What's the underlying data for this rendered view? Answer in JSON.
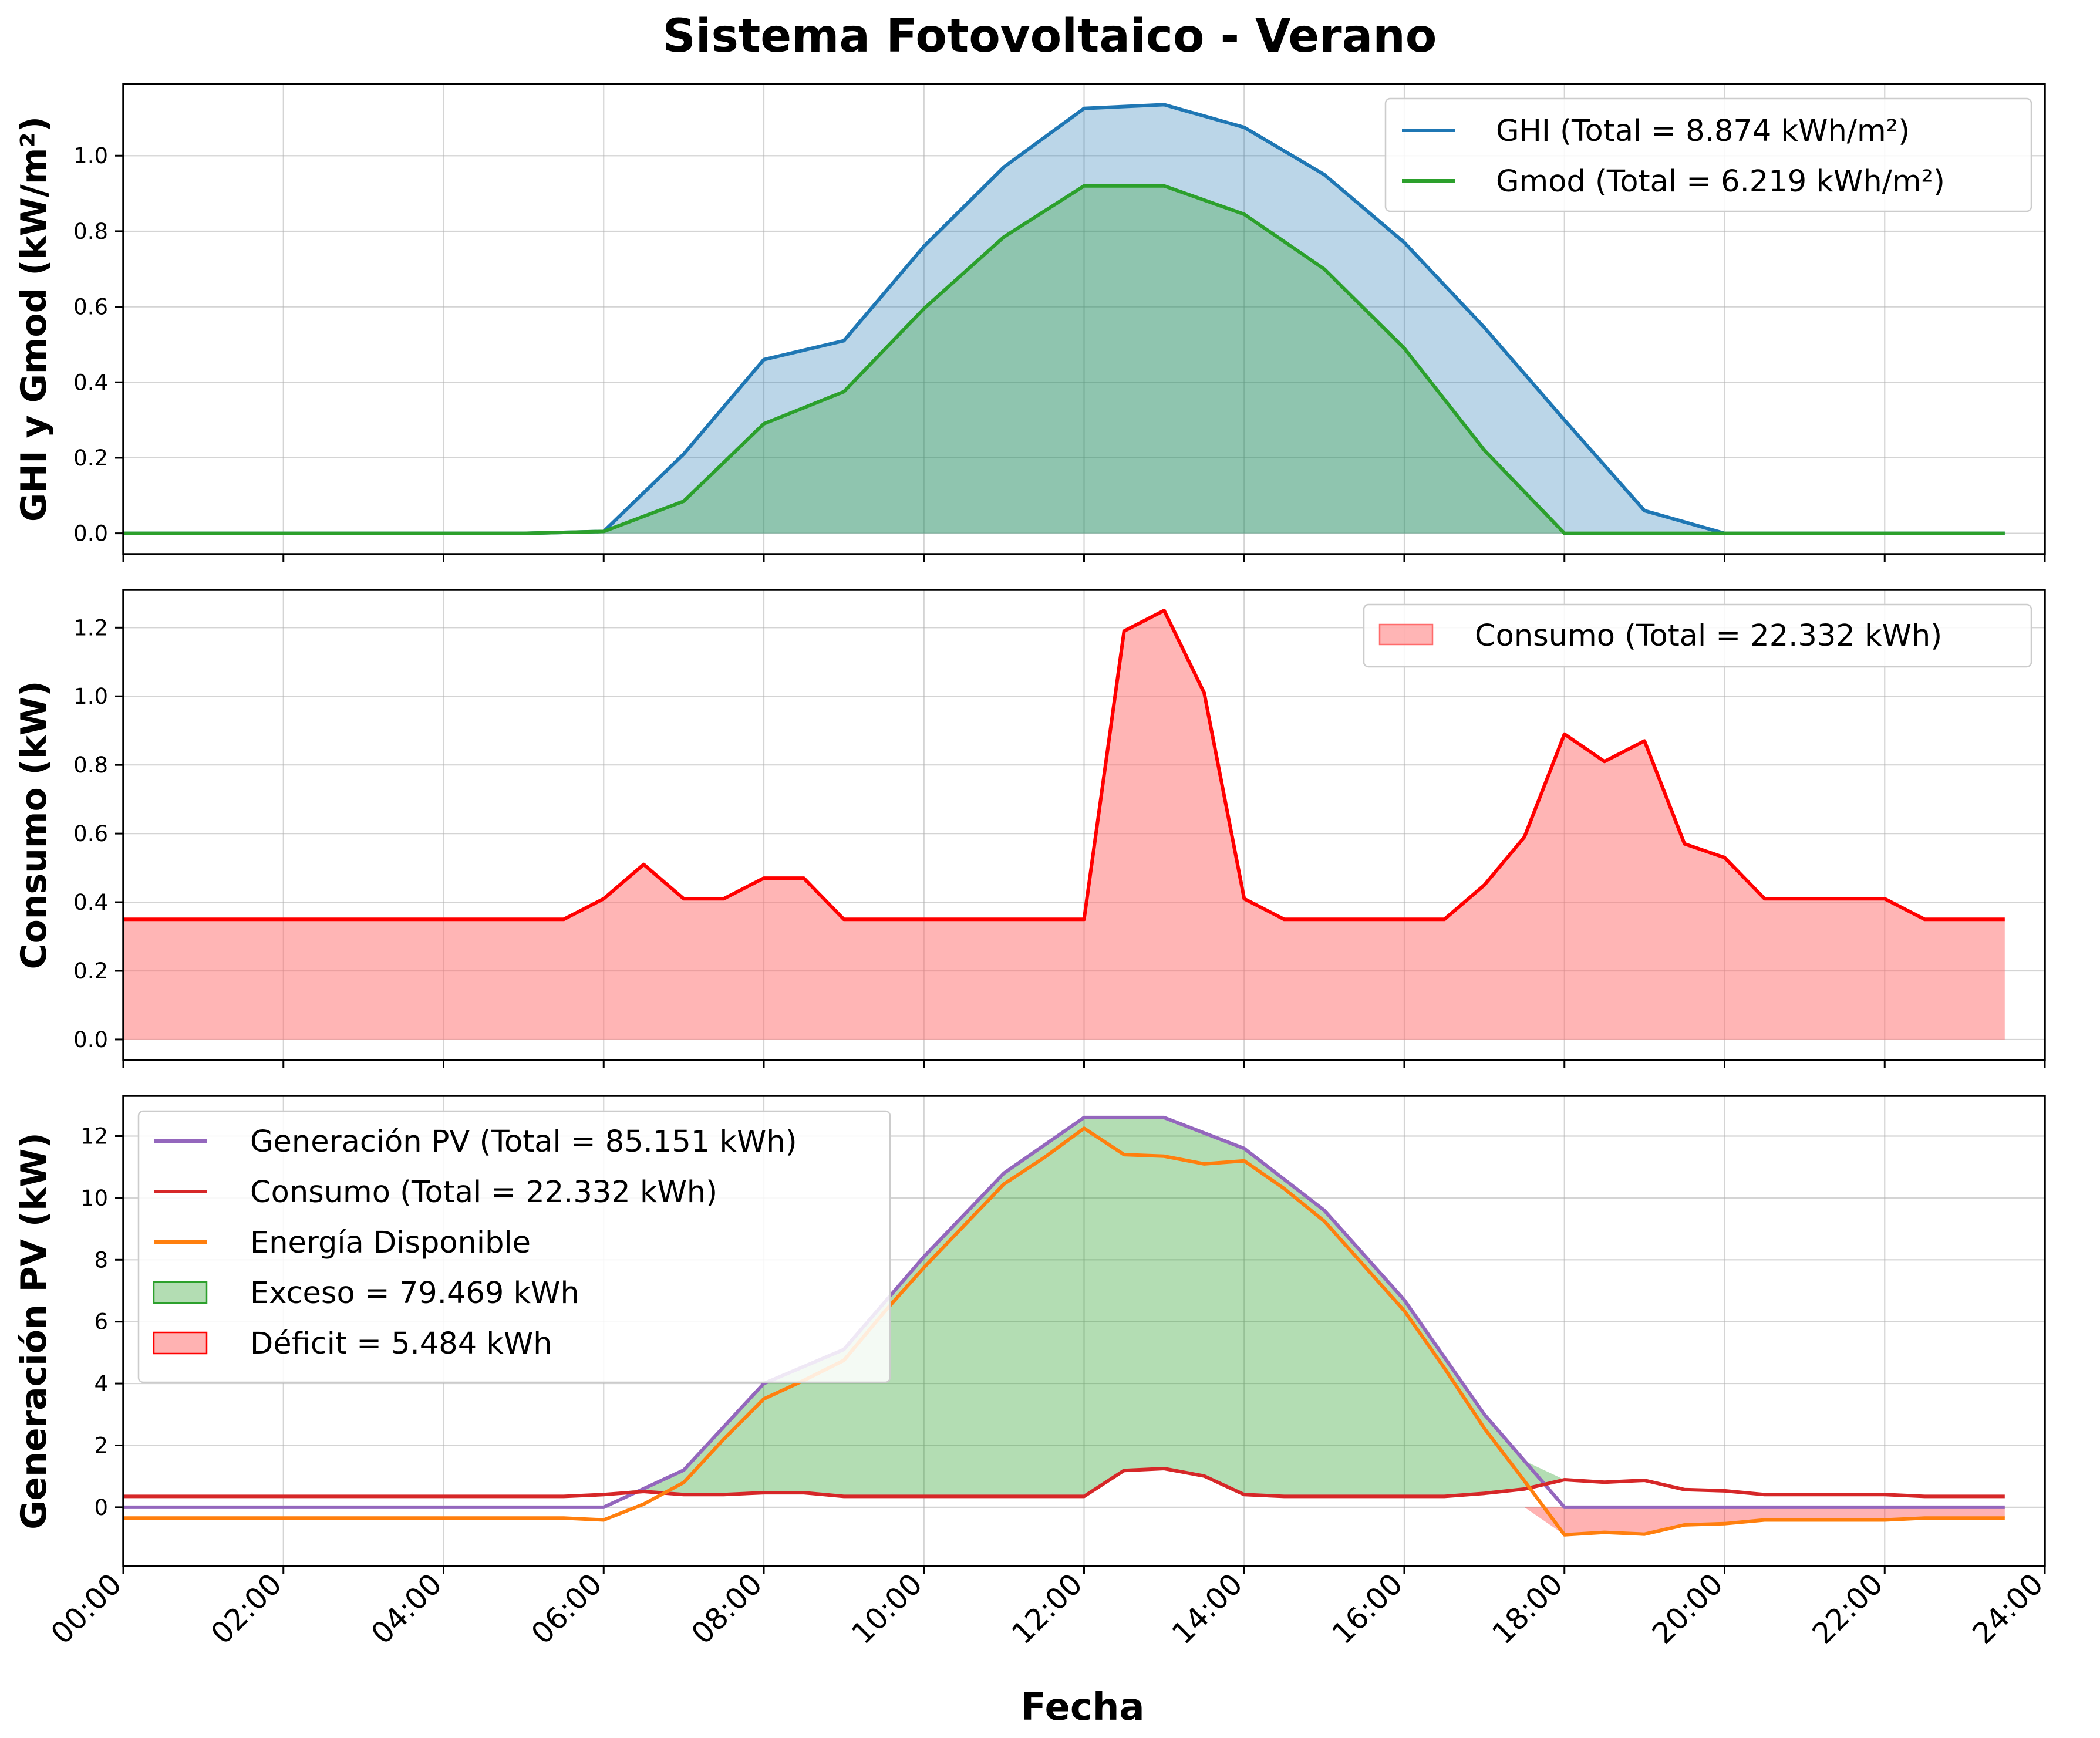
{
  "figure": {
    "title": "Sistema Fotovoltaico - Verano",
    "xlabel": "Fecha",
    "x_ticks": [
      "00:00",
      "02:00",
      "04:00",
      "06:00",
      "08:00",
      "10:00",
      "12:00",
      "14:00",
      "16:00",
      "18:00",
      "20:00",
      "22:00",
      "24:00"
    ]
  },
  "colors": {
    "ghi": "#1f77b4",
    "gmod": "#2ca02c",
    "consumo_area": "#ff6b6b",
    "consumo_line_top": "#ff0000",
    "pv": "#9467bd",
    "consumo_line": "#d62728",
    "disponible": "#ff7f0e",
    "exceso": "#2ca02c",
    "deficit": "#ff0000"
  },
  "chart_data": [
    {
      "type": "area",
      "ylabel": "GHI y Gmod (kW/m²)",
      "xlim": [
        0,
        24
      ],
      "ylim": [
        -0.055,
        1.19
      ],
      "yticks": [
        0.0,
        0.2,
        0.4,
        0.6,
        0.8,
        1.0
      ],
      "ytick_labels": [
        "0.0",
        "0.2",
        "0.4",
        "0.6",
        "0.8",
        "1.0"
      ],
      "grid": true,
      "legend_position": "upper right",
      "series": [
        {
          "name": "GHI (Total = 8.874 kWh/m²)",
          "x": [
            0,
            1,
            2,
            3,
            4,
            5,
            6,
            7,
            8,
            9,
            10,
            11,
            12,
            13,
            14,
            15,
            16,
            17,
            18,
            19,
            20,
            21,
            22,
            23.5
          ],
          "y": [
            0,
            0,
            0,
            0,
            0,
            0,
            0.005,
            0.21,
            0.46,
            0.51,
            0.76,
            0.97,
            1.125,
            1.135,
            1.075,
            0.95,
            0.77,
            0.545,
            0.3,
            0.06,
            0,
            0,
            0,
            0
          ]
        },
        {
          "name": "Gmod (Total = 6.219 kWh/m²)",
          "x": [
            0,
            1,
            2,
            3,
            4,
            5,
            6,
            7,
            8,
            9,
            10,
            11,
            12,
            13,
            14,
            15,
            16,
            17,
            18,
            19,
            20,
            21,
            22,
            23.5
          ],
          "y": [
            0,
            0,
            0,
            0,
            0,
            0,
            0.005,
            0.085,
            0.29,
            0.375,
            0.595,
            0.785,
            0.92,
            0.92,
            0.845,
            0.7,
            0.49,
            0.22,
            0,
            0,
            0,
            0,
            0,
            0
          ]
        }
      ]
    },
    {
      "type": "area",
      "ylabel": "Consumo (kW)",
      "xlim": [
        0,
        24
      ],
      "ylim": [
        -0.06,
        1.31
      ],
      "yticks": [
        0.0,
        0.2,
        0.4,
        0.6,
        0.8,
        1.0,
        1.2
      ],
      "ytick_labels": [
        "0.0",
        "0.2",
        "0.4",
        "0.6",
        "0.8",
        "1.0",
        "1.2"
      ],
      "grid": true,
      "legend_position": "upper right",
      "series": [
        {
          "name": "Consumo (Total = 22.332 kWh)",
          "x": [
            0,
            0.5,
            1,
            1.5,
            2,
            2.5,
            3,
            3.5,
            4,
            4.5,
            5,
            5.5,
            6,
            6.5,
            7,
            7.5,
            8,
            8.5,
            9,
            9.5,
            10,
            10.5,
            11,
            11.5,
            12,
            12.5,
            13,
            13.5,
            14,
            14.5,
            15,
            15.5,
            16,
            16.5,
            17,
            17.5,
            18,
            18.5,
            19,
            19.5,
            20,
            20.5,
            21,
            21.5,
            22,
            22.5,
            23,
            23.5
          ],
          "y": [
            0.35,
            0.35,
            0.35,
            0.35,
            0.35,
            0.35,
            0.35,
            0.35,
            0.35,
            0.35,
            0.35,
            0.35,
            0.41,
            0.51,
            0.41,
            0.41,
            0.47,
            0.47,
            0.35,
            0.35,
            0.35,
            0.35,
            0.35,
            0.35,
            0.35,
            1.19,
            1.25,
            1.01,
            0.41,
            0.35,
            0.35,
            0.35,
            0.35,
            0.35,
            0.45,
            0.59,
            0.89,
            0.81,
            0.87,
            0.57,
            0.53,
            0.41,
            0.41,
            0.41,
            0.41,
            0.35,
            0.35,
            0.35
          ]
        }
      ]
    },
    {
      "type": "line",
      "ylabel": "Generación PV (kW)",
      "xlim": [
        0,
        24
      ],
      "ylim": [
        -1.9,
        13.3
      ],
      "yticks": [
        0,
        2,
        4,
        6,
        8,
        10,
        12
      ],
      "ytick_labels": [
        "0",
        "2",
        "4",
        "6",
        "8",
        "10",
        "12"
      ],
      "grid": true,
      "legend_position": "upper left",
      "series": [
        {
          "name": "Generación PV (Total = 85.151 kWh)",
          "x": [
            0,
            1,
            2,
            3,
            4,
            5,
            6,
            7,
            8,
            9,
            10,
            11,
            12,
            13,
            14,
            15,
            16,
            17,
            18,
            19,
            20,
            21,
            22,
            23.5
          ],
          "y": [
            0,
            0,
            0,
            0,
            0,
            0,
            0,
            1.2,
            4.0,
            5.1,
            8.1,
            10.8,
            12.6,
            12.6,
            11.6,
            9.6,
            6.7,
            3.0,
            0,
            0,
            0,
            0,
            0,
            0
          ]
        },
        {
          "name": "Consumo (Total = 22.332 kWh)",
          "x": [
            0,
            0.5,
            1,
            1.5,
            2,
            2.5,
            3,
            3.5,
            4,
            4.5,
            5,
            5.5,
            6,
            6.5,
            7,
            7.5,
            8,
            8.5,
            9,
            9.5,
            10,
            10.5,
            11,
            11.5,
            12,
            12.5,
            13,
            13.5,
            14,
            14.5,
            15,
            15.5,
            16,
            16.5,
            17,
            17.5,
            18,
            18.5,
            19,
            19.5,
            20,
            20.5,
            21,
            21.5,
            22,
            22.5,
            23,
            23.5
          ],
          "y": [
            0.35,
            0.35,
            0.35,
            0.35,
            0.35,
            0.35,
            0.35,
            0.35,
            0.35,
            0.35,
            0.35,
            0.35,
            0.41,
            0.51,
            0.41,
            0.41,
            0.47,
            0.47,
            0.35,
            0.35,
            0.35,
            0.35,
            0.35,
            0.35,
            0.35,
            1.19,
            1.25,
            1.01,
            0.41,
            0.35,
            0.35,
            0.35,
            0.35,
            0.35,
            0.45,
            0.59,
            0.89,
            0.81,
            0.87,
            0.57,
            0.53,
            0.41,
            0.41,
            0.41,
            0.41,
            0.35,
            0.35,
            0.35
          ]
        },
        {
          "name": "Energía Disponible",
          "x": [
            0,
            0.5,
            1,
            1.5,
            2,
            2.5,
            3,
            3.5,
            4,
            4.5,
            5,
            5.5,
            6,
            6.5,
            7,
            7.5,
            8,
            8.5,
            9,
            9.5,
            10,
            10.5,
            11,
            11.5,
            12,
            12.5,
            13,
            13.5,
            14,
            14.5,
            15,
            15.5,
            16,
            16.5,
            17,
            17.5,
            18,
            18.5,
            19,
            19.5,
            20,
            20.5,
            21,
            21.5,
            22,
            22.5,
            23,
            23.5
          ],
          "y": [
            -0.35,
            -0.35,
            -0.35,
            -0.35,
            -0.35,
            -0.35,
            -0.35,
            -0.35,
            -0.35,
            -0.35,
            -0.35,
            -0.35,
            -0.41,
            0.1,
            0.8,
            2.2,
            3.5,
            4.1,
            4.75,
            6.3,
            7.75,
            9.1,
            10.45,
            11.3,
            12.25,
            11.4,
            11.35,
            11.1,
            11.2,
            10.3,
            9.25,
            7.8,
            6.35,
            4.5,
            2.55,
            0.85,
            -0.89,
            -0.81,
            -0.87,
            -0.57,
            -0.53,
            -0.41,
            -0.41,
            -0.41,
            -0.41,
            -0.35,
            -0.35,
            -0.35
          ]
        },
        {
          "name": "Exceso = 79.469 kWh"
        },
        {
          "name": "Déficit = 5.484 kWh"
        }
      ]
    }
  ]
}
